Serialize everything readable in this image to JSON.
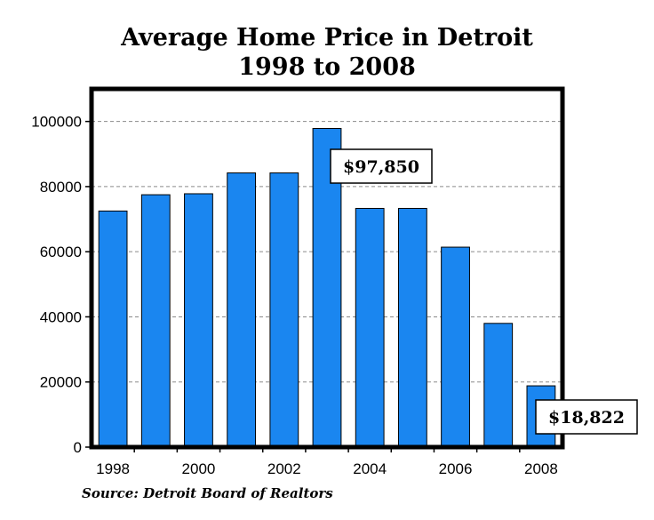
{
  "chart_data": {
    "type": "bar",
    "title": "Average Home Price in Detroit",
    "subtitle": "1998 to 2008",
    "categories": [
      "1998",
      "1999",
      "2000",
      "2001",
      "2002",
      "2003",
      "2004",
      "2005",
      "2006",
      "2007",
      "2008"
    ],
    "values": [
      72500,
      77500,
      77800,
      84200,
      84200,
      97850,
      73300,
      73300,
      61400,
      38000,
      18822
    ],
    "ylim": [
      0,
      110000
    ],
    "yticks": [
      0,
      20000,
      40000,
      60000,
      80000,
      100000
    ],
    "ytick_labels": [
      "0",
      "20000",
      "40000",
      "60000",
      "80000",
      "100000"
    ],
    "xtick_labels": [
      "1998",
      "2000",
      "2002",
      "2004",
      "2006",
      "2008"
    ],
    "xlabel": "",
    "ylabel": "",
    "grid": "horizontal dashed",
    "bar_color": "#1a86f0",
    "annotations": [
      "$97,850",
      "$18,822"
    ],
    "source": "Source: Detroit Board of Realtors"
  }
}
